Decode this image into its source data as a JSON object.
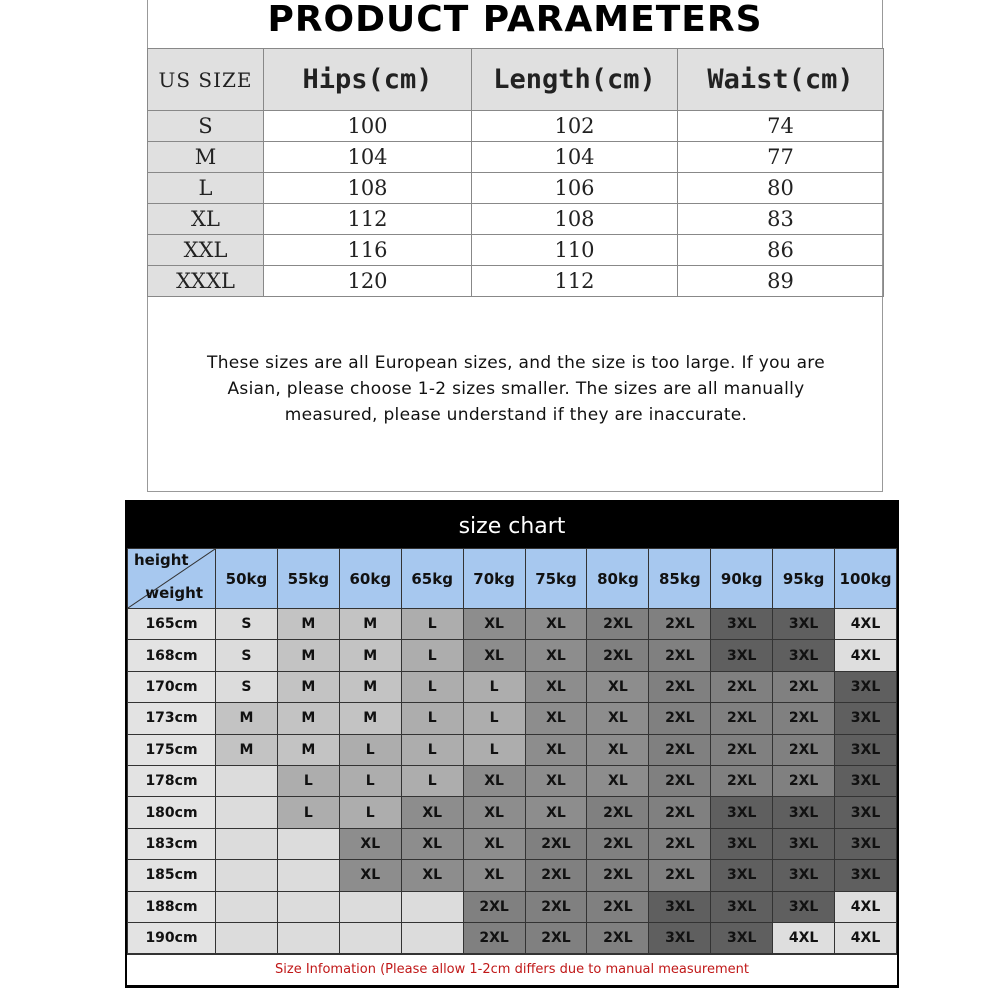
{
  "product_parameters": {
    "title": "PRODUCT PARAMETERS",
    "headers": [
      "US SIZE",
      "Hips(cm)",
      "Length(cm)",
      "Waist(cm)"
    ],
    "rows": [
      [
        "S",
        "100",
        "102",
        "74"
      ],
      [
        "M",
        "104",
        "104",
        "77"
      ],
      [
        "L",
        "108",
        "106",
        "80"
      ],
      [
        "XL",
        "112",
        "108",
        "83"
      ],
      [
        "XXL",
        "116",
        "110",
        "86"
      ],
      [
        "XXXL",
        "120",
        "112",
        "89"
      ]
    ],
    "note": [
      "These sizes are all European sizes, and the size is too large. If you are",
      "Asian, please choose 1-2 sizes smaller. The sizes are all manually",
      "measured, please understand if they are inaccurate."
    ]
  },
  "size_chart": {
    "title": "size chart",
    "corner_top": "height",
    "corner_bottom": "weight",
    "weights": [
      "50kg",
      "55kg",
      "60kg",
      "65kg",
      "70kg",
      "75kg",
      "80kg",
      "85kg",
      "90kg",
      "95kg",
      "100kg"
    ],
    "rows": [
      {
        "height": "165cm",
        "sizes": [
          "S",
          "M",
          "M",
          "L",
          "XL",
          "XL",
          "2XL",
          "2XL",
          "3XL",
          "3XL",
          "4XL"
        ]
      },
      {
        "height": "168cm",
        "sizes": [
          "S",
          "M",
          "M",
          "L",
          "XL",
          "XL",
          "2XL",
          "2XL",
          "3XL",
          "3XL",
          "4XL"
        ]
      },
      {
        "height": "170cm",
        "sizes": [
          "S",
          "M",
          "M",
          "L",
          "L",
          "XL",
          "XL",
          "2XL",
          "2XL",
          "2XL",
          "3XL"
        ]
      },
      {
        "height": "173cm",
        "sizes": [
          "M",
          "M",
          "M",
          "L",
          "L",
          "XL",
          "XL",
          "2XL",
          "2XL",
          "2XL",
          "3XL"
        ]
      },
      {
        "height": "175cm",
        "sizes": [
          "M",
          "M",
          "L",
          "L",
          "L",
          "XL",
          "XL",
          "2XL",
          "2XL",
          "2XL",
          "3XL"
        ]
      },
      {
        "height": "178cm",
        "sizes": [
          "",
          "L",
          "L",
          "L",
          "XL",
          "XL",
          "XL",
          "2XL",
          "2XL",
          "2XL",
          "3XL"
        ]
      },
      {
        "height": "180cm",
        "sizes": [
          "",
          "L",
          "L",
          "XL",
          "XL",
          "XL",
          "2XL",
          "2XL",
          "3XL",
          "3XL",
          "3XL"
        ]
      },
      {
        "height": "183cm",
        "sizes": [
          "",
          "",
          "XL",
          "XL",
          "XL",
          "2XL",
          "2XL",
          "2XL",
          "3XL",
          "3XL",
          "3XL"
        ]
      },
      {
        "height": "185cm",
        "sizes": [
          "",
          "",
          "XL",
          "XL",
          "XL",
          "2XL",
          "2XL",
          "2XL",
          "3XL",
          "3XL",
          "3XL"
        ]
      },
      {
        "height": "188cm",
        "sizes": [
          "",
          "",
          "",
          "",
          "2XL",
          "2XL",
          "2XL",
          "3XL",
          "3XL",
          "3XL",
          "4XL"
        ]
      },
      {
        "height": "190cm",
        "sizes": [
          "",
          "",
          "",
          "",
          "2XL",
          "2XL",
          "2XL",
          "3XL",
          "3XL",
          "4XL",
          "4XL"
        ]
      }
    ],
    "footer": "Size Infomation  (Please allow 1-2cm differs due to manual measurement",
    "colors": {
      "": "#dcdcdc",
      "S": "#dcdcdc",
      "M": "#c3c3c3",
      "L": "#adadad",
      "XL": "#8d8d8d",
      "2XL": "#808080",
      "3XL": "#5f5f5f",
      "4XL": "#dedede",
      "header": "#a7c8ef",
      "footer_text": "#c01818"
    }
  }
}
